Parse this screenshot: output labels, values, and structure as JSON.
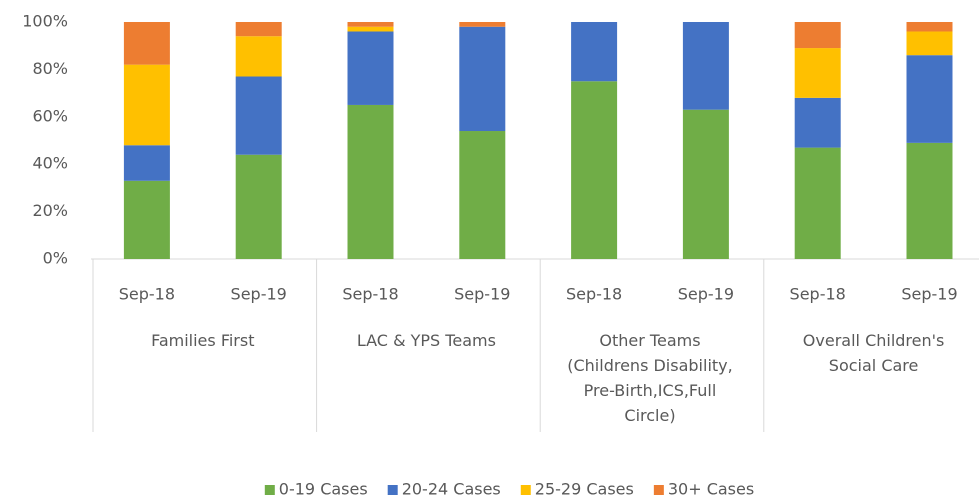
{
  "chart_data": {
    "type": "stacked_bar",
    "categories": [
      "Sep-18",
      "Sep-19",
      "Sep-18",
      "Sep-19",
      "Sep-18",
      "Sep-19",
      "Sep-18",
      "Sep-19"
    ],
    "groups": [
      "Families First",
      "LAC & YPS Teams",
      "Other Teams\n(Childrens Disability,\nPre-Birth,ICS,Full\nCircle)",
      "Overall Children's\nSocial Care"
    ],
    "series": [
      {
        "name": "0-19 Cases",
        "color": "#70ad47",
        "values": [
          33,
          44,
          65,
          54,
          75,
          63,
          47,
          49
        ]
      },
      {
        "name": "20-24 Cases",
        "color": "#4472c4",
        "values": [
          15,
          33,
          31,
          44,
          25,
          37,
          21,
          37
        ]
      },
      {
        "name": "25-29 Cases",
        "color": "#ffc000",
        "values": [
          34,
          17,
          2,
          0,
          0,
          0,
          21,
          10
        ]
      },
      {
        "name": "30+ Cases",
        "color": "#ed7d31",
        "values": [
          18,
          6,
          2,
          2,
          0,
          0,
          11,
          4
        ]
      }
    ],
    "ylim": [
      0,
      100
    ],
    "yticks": [
      {
        "value": 0,
        "label": "0%"
      },
      {
        "value": 20,
        "label": "20%"
      },
      {
        "value": 40,
        "label": "40%"
      },
      {
        "value": 60,
        "label": "60%"
      },
      {
        "value": 80,
        "label": "80%"
      },
      {
        "value": 100,
        "label": "100%"
      }
    ],
    "grid": false,
    "legend": "bottom"
  }
}
